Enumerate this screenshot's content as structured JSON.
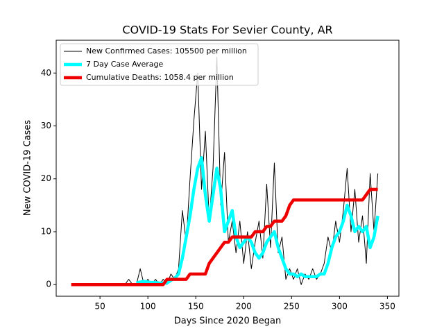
{
  "chart_data": {
    "type": "line",
    "title": "COVID-19 Stats For Sevier County, AR",
    "x_label": "Days Since 2020 Began",
    "y_label": "New COVID-19 Cases",
    "x": [
      20,
      24,
      28,
      32,
      36,
      40,
      44,
      48,
      52,
      56,
      60,
      64,
      68,
      72,
      76,
      80,
      84,
      88,
      92,
      96,
      100,
      104,
      108,
      112,
      116,
      120,
      124,
      128,
      132,
      136,
      140,
      144,
      148,
      152,
      156,
      160,
      164,
      168,
      172,
      176,
      180,
      184,
      188,
      192,
      196,
      200,
      204,
      208,
      212,
      216,
      220,
      224,
      228,
      232,
      236,
      240,
      244,
      248,
      252,
      256,
      260,
      264,
      268,
      272,
      276,
      280,
      284,
      288,
      292,
      296,
      300,
      304,
      308,
      312,
      316,
      320,
      324,
      328,
      332,
      336,
      340
    ],
    "series": [
      {
        "name": "New Confirmed Cases: 105500 per million",
        "color": "#000000",
        "width": 1,
        "values": [
          0,
          0,
          0,
          0,
          0,
          0,
          0,
          0,
          0,
          0,
          0,
          0,
          0,
          0,
          0,
          1,
          0,
          0,
          3,
          0,
          1,
          0,
          1,
          0,
          1,
          0,
          2,
          1,
          3,
          14,
          8,
          20,
          31,
          40,
          18,
          29,
          12,
          22,
          43,
          15,
          25,
          8,
          12,
          6,
          12,
          4,
          10,
          3,
          8,
          12,
          5,
          19,
          7,
          23,
          6,
          9,
          1,
          3,
          1,
          3,
          0,
          2,
          1,
          3,
          1,
          2,
          4,
          9,
          6,
          12,
          8,
          14,
          22,
          10,
          18,
          8,
          13,
          4,
          21,
          10,
          21
        ]
      },
      {
        "name": "7 Day Case Average",
        "color": "#00ffff",
        "width": 4.5,
        "values": [
          null,
          null,
          null,
          null,
          null,
          null,
          null,
          null,
          null,
          null,
          null,
          null,
          null,
          null,
          null,
          null,
          null,
          0.3,
          0.5,
          0.6,
          0.5,
          0.4,
          0.4,
          0.3,
          0.3,
          0.3,
          0.8,
          1.2,
          2,
          5,
          9,
          13,
          18,
          22,
          24,
          17,
          12,
          17,
          22,
          18,
          10,
          12,
          14,
          9,
          7,
          8,
          9,
          8,
          6,
          5,
          6,
          8,
          9,
          10,
          7,
          5,
          3,
          2,
          2,
          1.5,
          2,
          1.5,
          1.5,
          1.5,
          1.5,
          2,
          2,
          4,
          7,
          9,
          10,
          12,
          15,
          13,
          10,
          11,
          10,
          11,
          7,
          9,
          13
        ]
      },
      {
        "name": "Cumulative Deaths: 1058.4 per million",
        "color": "#ee0000",
        "width": 4.5,
        "values": [
          0,
          0,
          0,
          0,
          0,
          0,
          0,
          0,
          0,
          0,
          0,
          0,
          0,
          0,
          0,
          0,
          0,
          0,
          0,
          0,
          0,
          0,
          0,
          0,
          0,
          1,
          1,
          1,
          1,
          1,
          1,
          2,
          2,
          2,
          2,
          2,
          4,
          5,
          6,
          7,
          8,
          8,
          9,
          9,
          9,
          9,
          9,
          9,
          10,
          10,
          10,
          11,
          11,
          12,
          12,
          12,
          13,
          15,
          16,
          16,
          16,
          16,
          16,
          16,
          16,
          16,
          16,
          16,
          16,
          16,
          16,
          16,
          16,
          16,
          16,
          16,
          16,
          17,
          18,
          18,
          18
        ]
      }
    ],
    "xlim": [
      4.3,
      362
    ],
    "ylim": [
      -2.2,
      46.2
    ],
    "xticks": [
      50,
      100,
      150,
      200,
      250,
      300,
      350
    ],
    "yticks": [
      0,
      10,
      20,
      30,
      40
    ],
    "legend": "upper left"
  }
}
